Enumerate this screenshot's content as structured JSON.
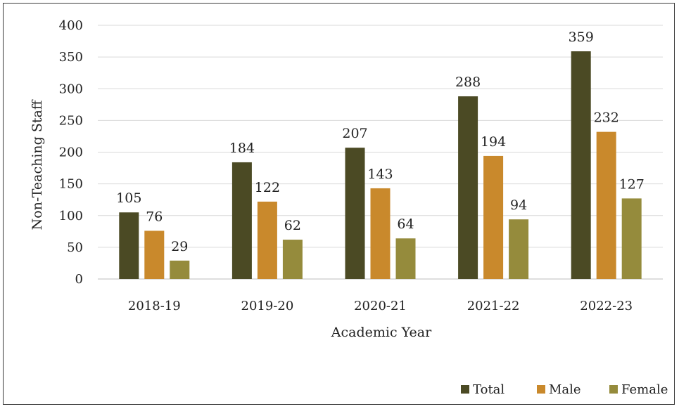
{
  "chart_data": {
    "type": "bar",
    "title": "",
    "xlabel": "Academic Year",
    "ylabel": "Non-Teaching Staff",
    "ylim": [
      0,
      400
    ],
    "yticks": [
      "0",
      "50",
      "100",
      "150",
      "200",
      "250",
      "300",
      "350",
      "400"
    ],
    "categories": [
      "2018-19",
      "2019-20",
      "2020-21",
      "2021-22",
      "2022-23"
    ],
    "series": [
      {
        "name": "Total",
        "color": "#4b4a24",
        "values": [
          105,
          184,
          207,
          288,
          359
        ]
      },
      {
        "name": "Male",
        "color": "#c9892c",
        "values": [
          76,
          122,
          143,
          194,
          232
        ]
      },
      {
        "name": "Female",
        "color": "#958b3c",
        "values": [
          29,
          62,
          64,
          94,
          127
        ]
      }
    ],
    "grid": true,
    "legend_position": "bottom-right",
    "data_labels": true
  }
}
